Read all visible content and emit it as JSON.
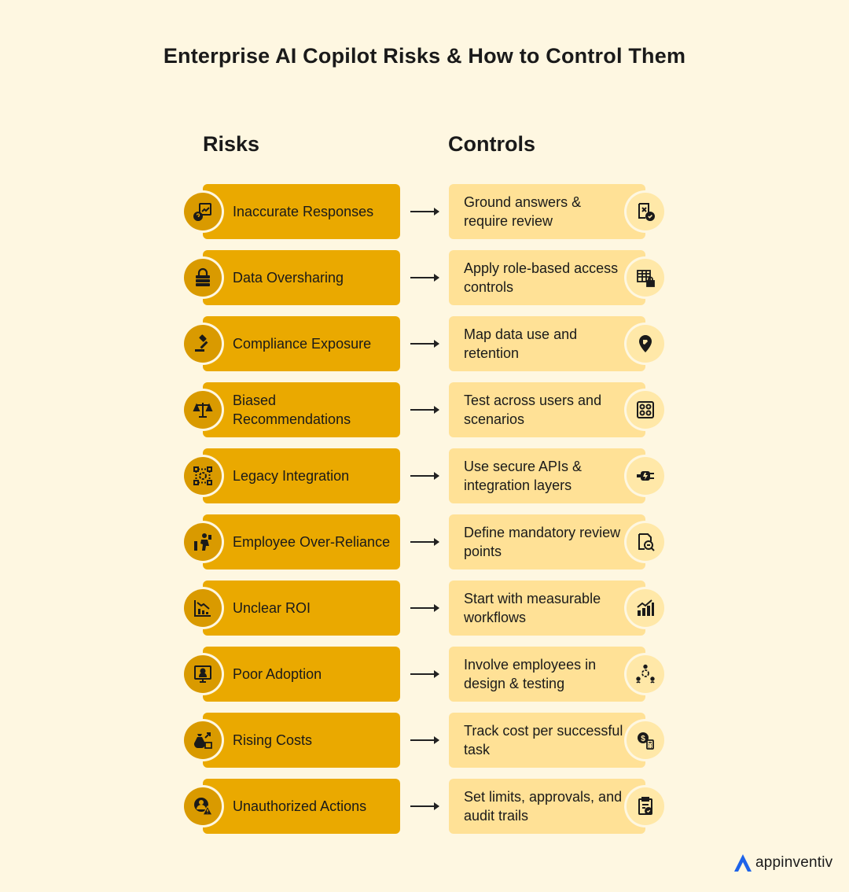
{
  "title": "Enterprise AI Copilot Risks & How to Control Them",
  "columns": {
    "risks": "Risks",
    "controls": "Controls"
  },
  "rows": [
    {
      "risk": "Inaccurate Responses",
      "risk_icon": "question-chart-icon",
      "control": "Ground answers & require review",
      "control_icon": "document-check-icon"
    },
    {
      "risk": "Data Oversharing",
      "risk_icon": "server-lock-icon",
      "control": "Apply role-based access controls",
      "control_icon": "table-lock-icon"
    },
    {
      "risk": "Compliance Exposure",
      "risk_icon": "gavel-icon",
      "control": "Map data use and retention",
      "control_icon": "location-pin-icon"
    },
    {
      "risk": "Biased Recommendations",
      "risk_icon": "balance-scale-icon",
      "control": "Test across users and scenarios",
      "control_icon": "grid-test-icon"
    },
    {
      "risk": "Legacy Integration",
      "risk_icon": "integration-gear-icon",
      "control": "Use secure APIs & integration layers",
      "control_icon": "plug-connector-icon"
    },
    {
      "risk": "Employee Over-Reliance",
      "risk_icon": "employee-desk-icon",
      "control": "Define mandatory review points",
      "control_icon": "search-document-icon"
    },
    {
      "risk": "Unclear ROI",
      "risk_icon": "declining-chart-icon",
      "control": "Start with measurable workflows",
      "control_icon": "growth-chart-icon"
    },
    {
      "risk": "Poor Adoption",
      "risk_icon": "screen-user-icon",
      "control": "Involve employees in design & testing",
      "control_icon": "team-gear-icon"
    },
    {
      "risk": "Rising Costs",
      "risk_icon": "money-bag-icon",
      "control": "Track cost per successful task",
      "control_icon": "coin-calculator-icon"
    },
    {
      "risk": "Unauthorized Actions",
      "risk_icon": "user-warning-icon",
      "control": "Set limits, approvals, and audit trails",
      "control_icon": "clipboard-check-icon"
    }
  ],
  "brand": {
    "name": "appinventiv",
    "logo_icon": "appinventiv-logo-icon"
  },
  "colors": {
    "background": "#FEF7E1",
    "risk": "#EAA900",
    "control": "#FFE196",
    "logo": "#1E63E9"
  }
}
